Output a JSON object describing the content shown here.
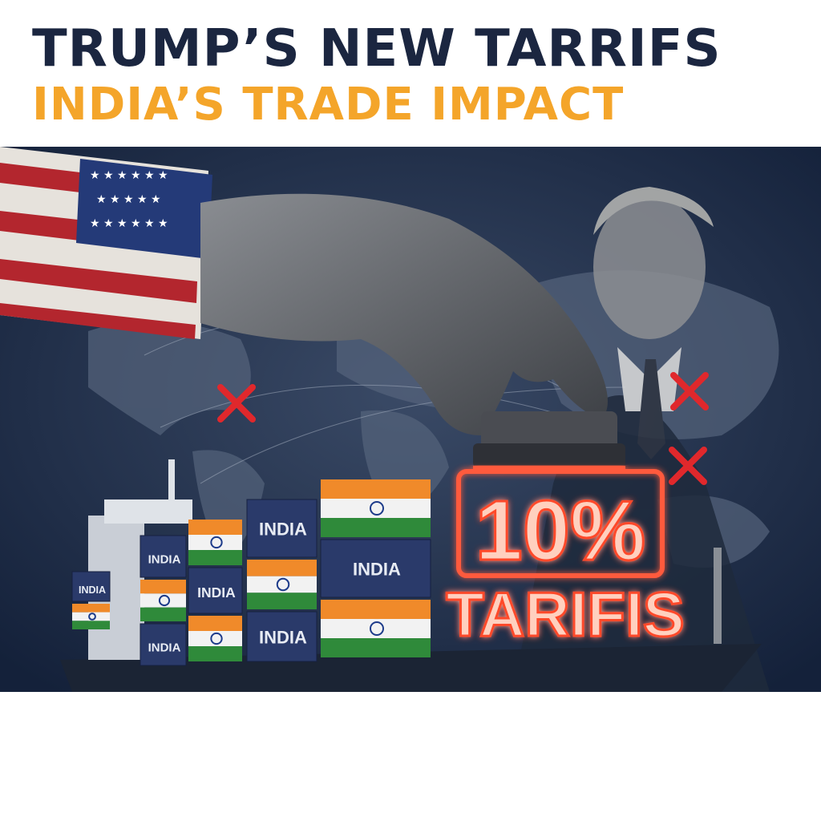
{
  "header": {
    "title": "TRUMP’S NEW TARRIFS",
    "subtitle": "INDIA’S TRADE IMPACT"
  },
  "illustration": {
    "container_label": "INDIA",
    "stamp_percent": "10%",
    "stamp_word": "TARIFIS",
    "colors": {
      "title": "#1b2640",
      "subtitle": "#f4a52a",
      "background": "#1c2b45",
      "glow": "#ff5a3c",
      "x_mark": "#e0282c",
      "saffron": "#f08a2a",
      "india_green": "#2f8a3a"
    },
    "icons": [
      "us-flag-sleeve",
      "hand",
      "rubber-stamp",
      "x-mark",
      "cargo-ship",
      "india-flag-container",
      "world-map",
      "portrait"
    ]
  }
}
